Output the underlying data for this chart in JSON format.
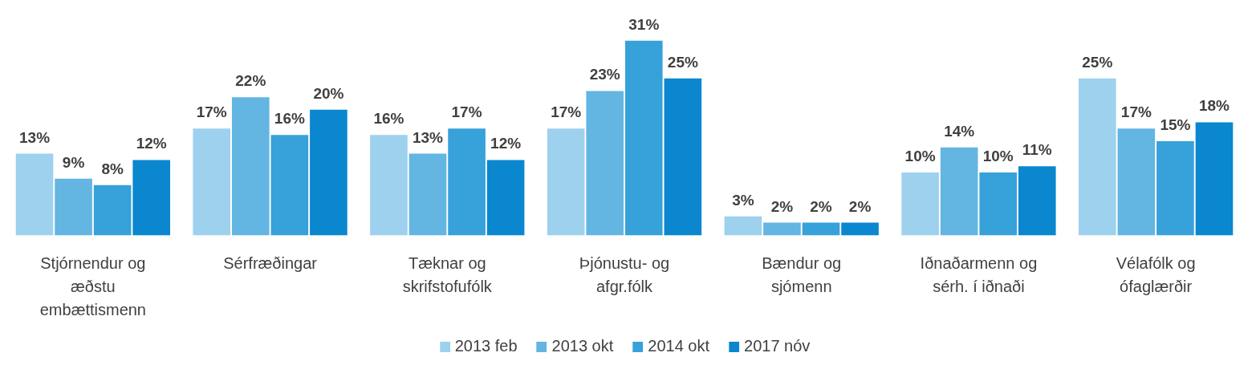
{
  "chart_data": {
    "type": "bar",
    "categories": [
      "Stjórnendur og\næðstu\nembættismenn",
      "Sérfræðingar",
      "Tæknar og\nskrifstofufólk",
      "Þjónustu- og\nafgr.fólk",
      "Bændur og\nsjómenn",
      "Iðnaðarmenn og\nsérh. í iðnaði",
      "Vélafólk og\nófaglærðir"
    ],
    "series": [
      {
        "name": "2013 feb",
        "color": "#9dd1ee",
        "values": [
          13,
          17,
          16,
          17,
          3,
          10,
          25
        ],
        "value_labels": [
          "13%",
          "17%",
          "16%",
          "17%",
          "3%",
          "10%",
          "25%"
        ]
      },
      {
        "name": "2013 okt",
        "color": "#63b5e2",
        "values": [
          9,
          22,
          13,
          23,
          2,
          14,
          17
        ],
        "value_labels": [
          "9%",
          "22%",
          "13%",
          "23%",
          "2%",
          "14%",
          "17%"
        ]
      },
      {
        "name": "2014 okt",
        "color": "#37a1da",
        "values": [
          8,
          16,
          17,
          31,
          2,
          10,
          15
        ],
        "value_labels": [
          "8%",
          "16%",
          "17%",
          "31%",
          "2%",
          "10%",
          "15%"
        ]
      },
      {
        "name": "2017 nóv",
        "color": "#0a87cf",
        "values": [
          12,
          20,
          12,
          25,
          2,
          11,
          18
        ],
        "value_labels": [
          "12%",
          "20%",
          "12%",
          "25%",
          "2%",
          "11%",
          "18%"
        ]
      }
    ],
    "legend": "bottom",
    "grid": false
  }
}
